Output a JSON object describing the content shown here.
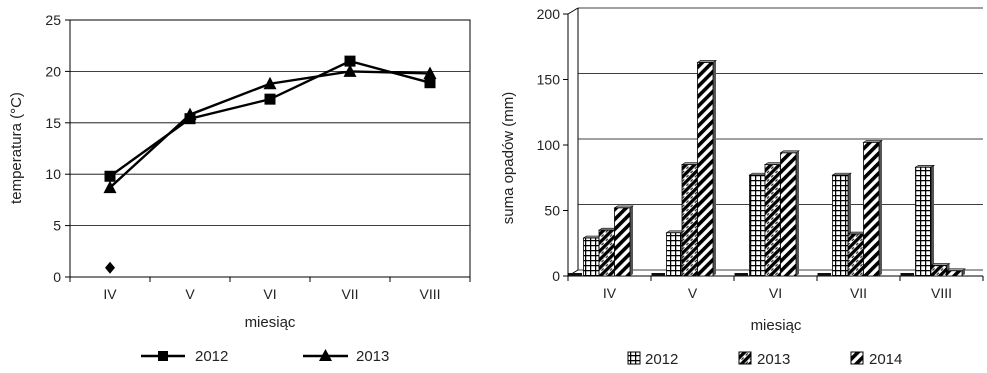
{
  "chart_data": [
    {
      "type": "line",
      "categories": [
        "IV",
        "V",
        "VI",
        "VII",
        "VIII"
      ],
      "xlabel": "miesiąc",
      "ylabel": "temperatura (°C)",
      "ylim": [
        0,
        25
      ],
      "yticks": [
        "0",
        "5",
        "10",
        "15",
        "20",
        "25"
      ],
      "grid": "horizontal",
      "legend_position": "bottom",
      "series": [
        {
          "name": "2012",
          "marker": "square",
          "values": [
            9.8,
            15.4,
            17.3,
            21.0,
            18.9
          ]
        },
        {
          "name": "2013",
          "marker": "triangle",
          "values": [
            8.7,
            15.8,
            18.8,
            20.0,
            19.8
          ]
        },
        {
          "name": "",
          "marker": "diamond",
          "values": [
            0.9,
            null,
            null,
            null,
            null
          ]
        }
      ]
    },
    {
      "type": "bar",
      "style": "3d",
      "categories": [
        "IV",
        "V",
        "VI",
        "VII",
        "VIII"
      ],
      "xlabel": "miesiąc",
      "ylabel": "suma opadów (mm)",
      "ylim": [
        0,
        200
      ],
      "yticks": [
        "0",
        "50",
        "100",
        "150",
        "200"
      ],
      "grid": "horizontal",
      "legend_position": "bottom",
      "series": [
        {
          "name": "2012",
          "pattern": "grid",
          "values": [
            29,
            33,
            77,
            77,
            83
          ]
        },
        {
          "name": "2013",
          "pattern": "wave",
          "values": [
            35,
            85,
            85,
            32,
            8
          ]
        },
        {
          "name": "2014",
          "pattern": "diagonal",
          "values": [
            52,
            163,
            94,
            102,
            4
          ]
        }
      ]
    }
  ]
}
